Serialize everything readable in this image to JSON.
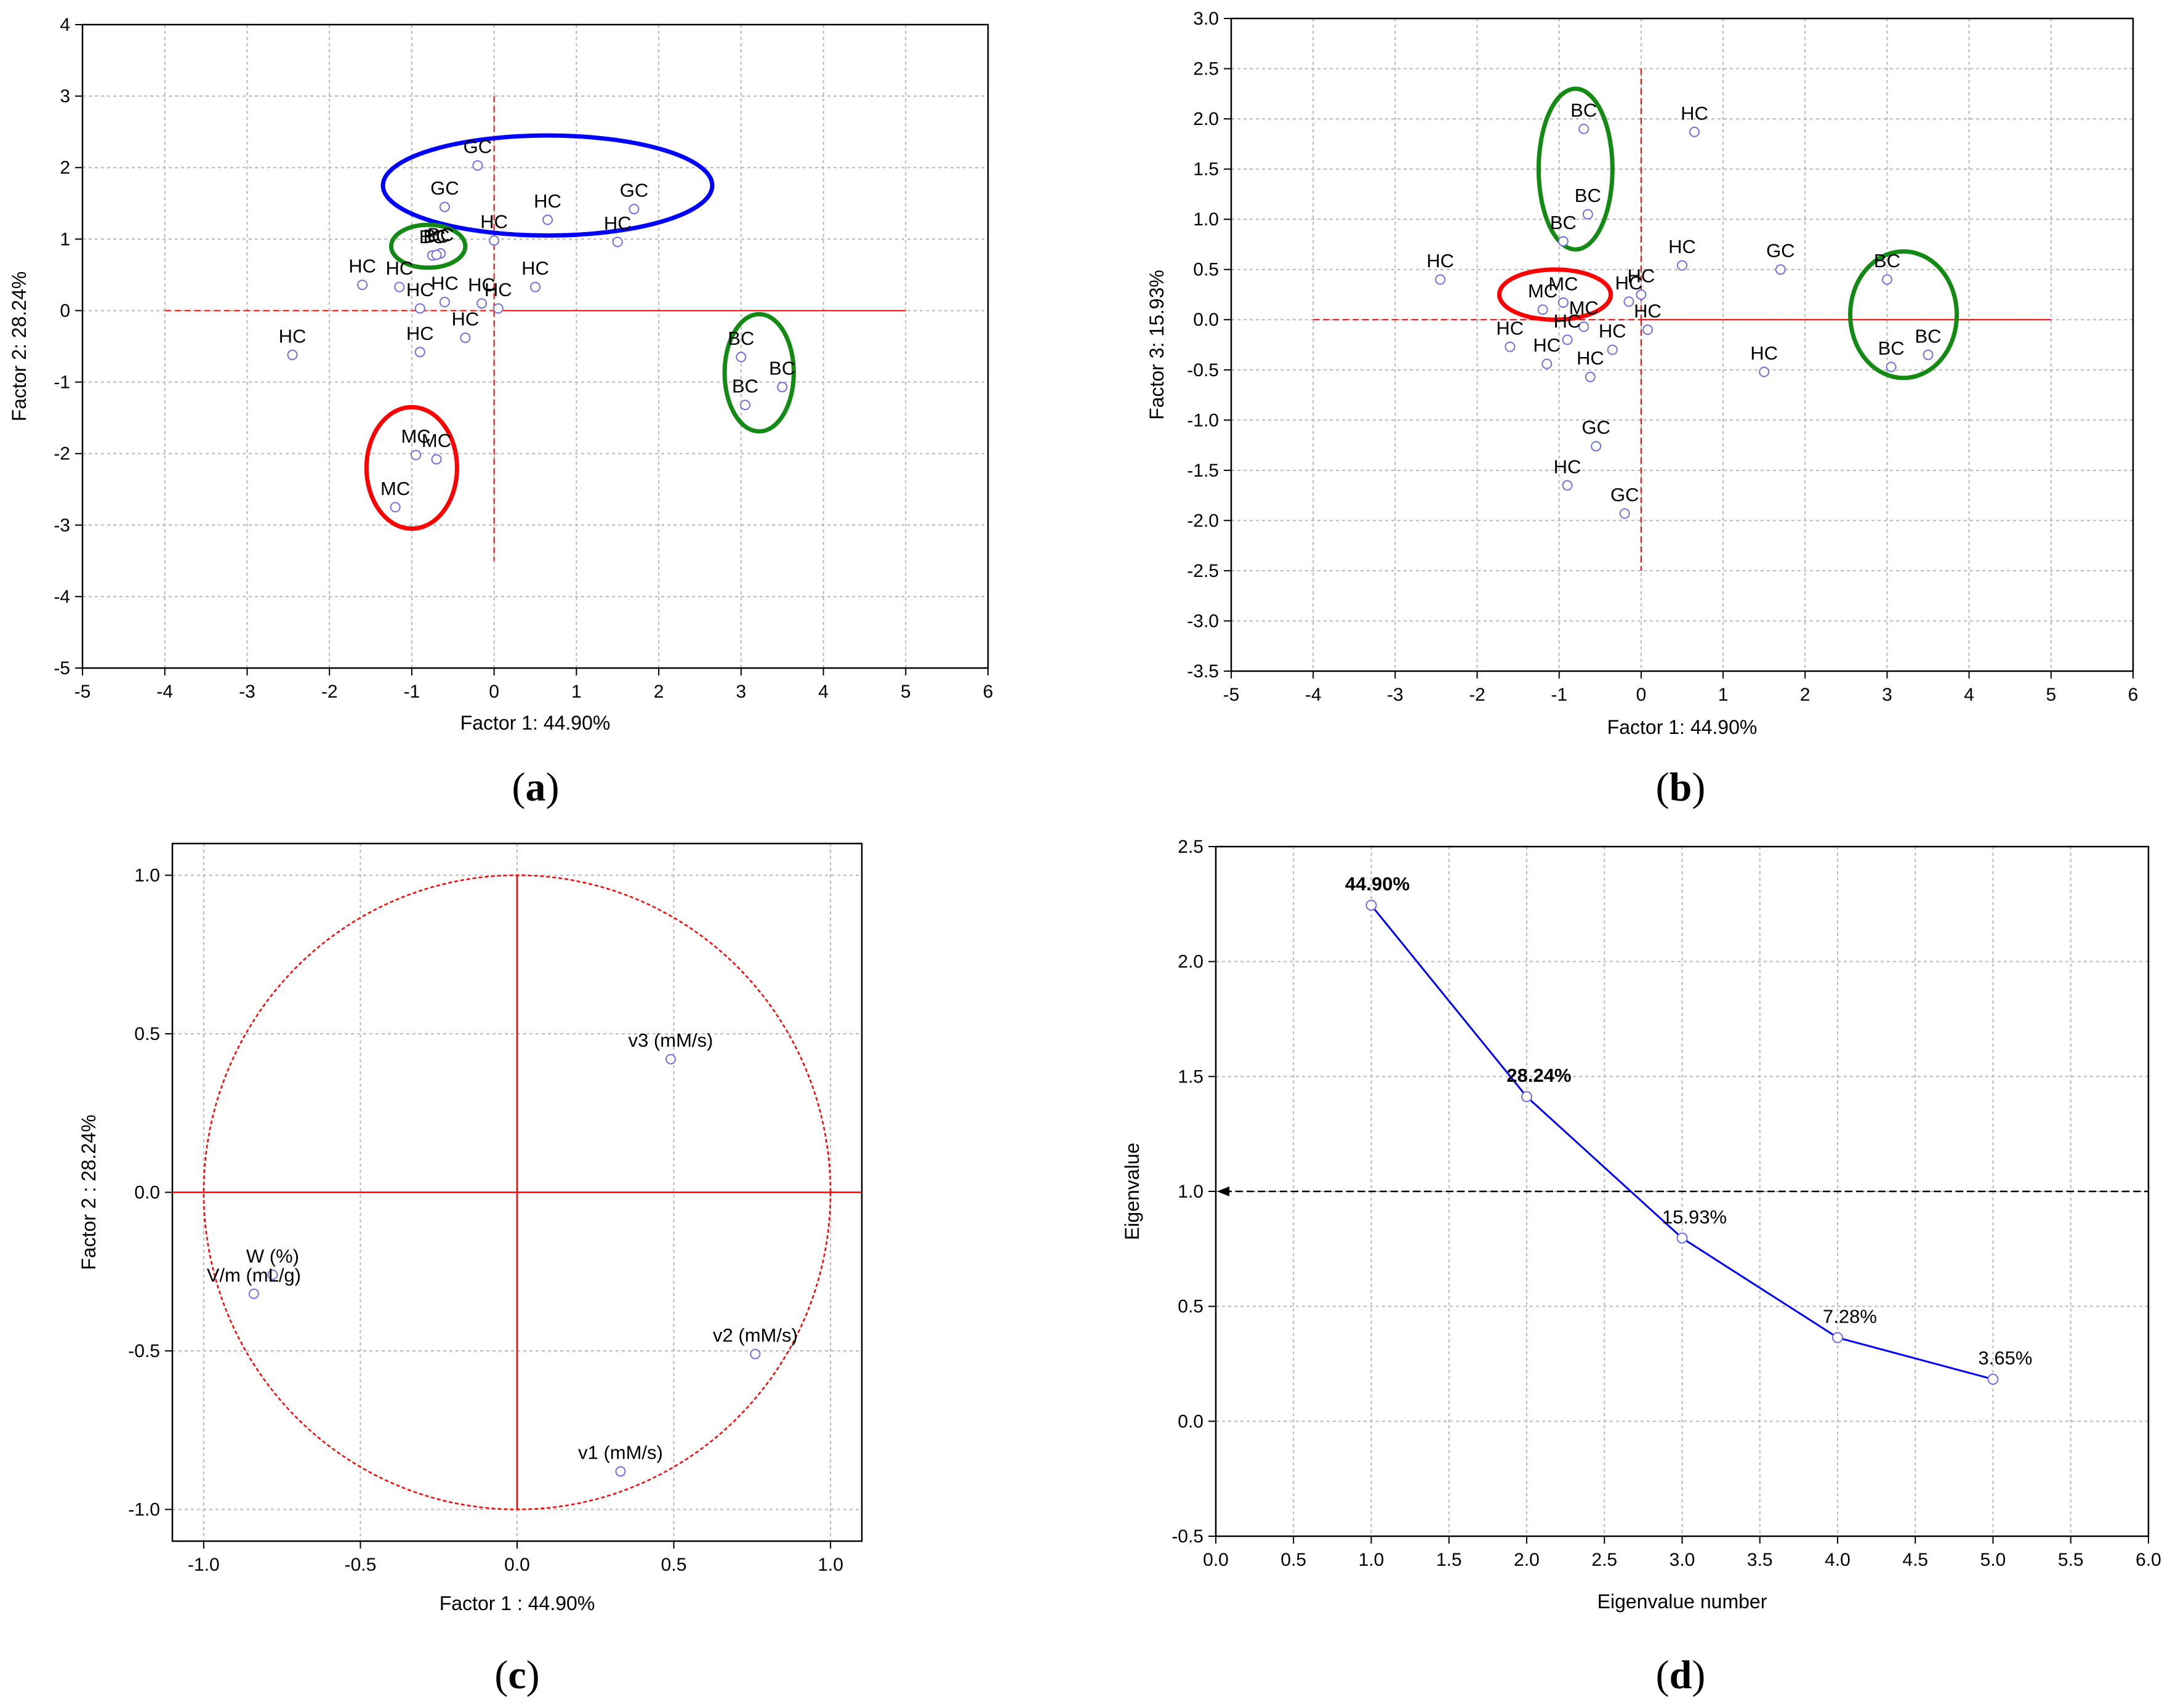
{
  "chart_data": [
    {
      "type": "scatter",
      "panel": "(a)",
      "panel_letter": "a",
      "xlabel": "Factor 1: 44.90%",
      "ylabel": "Factor 2: 28.24%",
      "xlim": [
        -5,
        6
      ],
      "ylim": [
        -5,
        4
      ],
      "xticks": [
        -5,
        -4,
        -3,
        -2,
        -1,
        0,
        1,
        2,
        3,
        4,
        5,
        6
      ],
      "yticks": [
        -5,
        -4,
        -3,
        -2,
        -1,
        0,
        1,
        2,
        3,
        4
      ],
      "grid": true,
      "points": [
        {
          "label": "GC",
          "x": -0.2,
          "y": 2.03
        },
        {
          "label": "GC",
          "x": -0.6,
          "y": 1.45
        },
        {
          "label": "HC",
          "x": 0.65,
          "y": 1.27
        },
        {
          "label": "GC",
          "x": 1.7,
          "y": 1.42
        },
        {
          "label": "HC",
          "x": 0.0,
          "y": 0.98
        },
        {
          "label": "HC",
          "x": 1.5,
          "y": 0.96
        },
        {
          "label": "BC",
          "x": -0.75,
          "y": 0.77
        },
        {
          "label": "BC",
          "x": -0.65,
          "y": 0.8
        },
        {
          "label": "BC",
          "x": -0.7,
          "y": 0.78
        },
        {
          "label": "HC",
          "x": -1.6,
          "y": 0.36
        },
        {
          "label": "HC",
          "x": -1.15,
          "y": 0.33
        },
        {
          "label": "HC",
          "x": -0.9,
          "y": 0.03
        },
        {
          "label": "HC",
          "x": -0.6,
          "y": 0.12
        },
        {
          "label": "HC",
          "x": -0.15,
          "y": 0.1
        },
        {
          "label": "HC",
          "x": 0.05,
          "y": 0.03
        },
        {
          "label": "HC",
          "x": 0.5,
          "y": 0.33
        },
        {
          "label": "HC",
          "x": -2.45,
          "y": -0.62
        },
        {
          "label": "HC",
          "x": -0.9,
          "y": -0.58
        },
        {
          "label": "HC",
          "x": -0.35,
          "y": -0.38
        },
        {
          "label": "MC",
          "x": -0.95,
          "y": -2.02
        },
        {
          "label": "MC",
          "x": -0.7,
          "y": -2.08
        },
        {
          "label": "MC",
          "x": -1.2,
          "y": -2.75
        },
        {
          "label": "BC",
          "x": 3.0,
          "y": -0.65
        },
        {
          "label": "BC",
          "x": 3.05,
          "y": -1.32
        },
        {
          "label": "BC",
          "x": 3.5,
          "y": -1.07
        }
      ],
      "ref_lines": {
        "x": 0,
        "y": 0
      },
      "groups": [
        {
          "color": "#0000ff",
          "cx": 0.65,
          "cy": 1.75,
          "rx": 2.0,
          "ry": 0.7
        },
        {
          "color": "#138a13",
          "cx": -0.8,
          "cy": 0.9,
          "rx": 0.45,
          "ry": 0.3
        },
        {
          "color": "#ff0000",
          "cx": -1.0,
          "cy": -2.2,
          "rx": 0.55,
          "ry": 0.85
        },
        {
          "color": "#138a13",
          "cx": 3.22,
          "cy": -0.87,
          "rx": 0.42,
          "ry": 0.82
        }
      ]
    },
    {
      "type": "scatter",
      "panel": "(b)",
      "panel_letter": "b",
      "xlabel": "Factor 1: 44.90%",
      "ylabel": "Factor 3: 15.93%",
      "xlim": [
        -5,
        6
      ],
      "ylim": [
        -3.5,
        3.0
      ],
      "xticks": [
        -5,
        -4,
        -3,
        -2,
        -1,
        0,
        1,
        2,
        3,
        4,
        5,
        6
      ],
      "yticks": [
        -3.5,
        -3.0,
        -2.5,
        -2.0,
        -1.5,
        -1.0,
        -0.5,
        0.0,
        0.5,
        1.0,
        1.5,
        2.0,
        2.5,
        3.0
      ],
      "grid": true,
      "points": [
        {
          "label": "BC",
          "x": -0.7,
          "y": 1.9
        },
        {
          "label": "HC",
          "x": 0.65,
          "y": 1.87
        },
        {
          "label": "BC",
          "x": -0.65,
          "y": 1.05
        },
        {
          "label": "BC",
          "x": -0.95,
          "y": 0.78
        },
        {
          "label": "HC",
          "x": -2.45,
          "y": 0.4
        },
        {
          "label": "HC",
          "x": 0.5,
          "y": 0.54
        },
        {
          "label": "GC",
          "x": 1.7,
          "y": 0.5
        },
        {
          "label": "BC",
          "x": 3.0,
          "y": 0.4
        },
        {
          "label": "MC",
          "x": -1.2,
          "y": 0.1
        },
        {
          "label": "MC",
          "x": -0.95,
          "y": 0.17
        },
        {
          "label": "MC",
          "x": -0.7,
          "y": -0.07
        },
        {
          "label": "HC",
          "x": -0.15,
          "y": 0.18
        },
        {
          "label": "HC",
          "x": 0.0,
          "y": 0.25
        },
        {
          "label": "HC",
          "x": 0.08,
          "y": -0.1
        },
        {
          "label": "HC",
          "x": -1.6,
          "y": -0.27
        },
        {
          "label": "HC",
          "x": -0.9,
          "y": -0.2
        },
        {
          "label": "HC",
          "x": -1.15,
          "y": -0.44
        },
        {
          "label": "HC",
          "x": -0.35,
          "y": -0.3
        },
        {
          "label": "HC",
          "x": -0.62,
          "y": -0.57
        },
        {
          "label": "HC",
          "x": 1.5,
          "y": -0.52
        },
        {
          "label": "BC",
          "x": 3.05,
          "y": -0.47
        },
        {
          "label": "BC",
          "x": 3.5,
          "y": -0.35
        },
        {
          "label": "GC",
          "x": -0.55,
          "y": -1.26
        },
        {
          "label": "HC",
          "x": -0.9,
          "y": -1.65
        },
        {
          "label": "GC",
          "x": -0.2,
          "y": -1.93
        }
      ],
      "ref_lines": {
        "x": 0,
        "y": 0
      },
      "groups": [
        {
          "color": "#138a13",
          "cx": -0.8,
          "cy": 1.5,
          "rx": 0.45,
          "ry": 0.8
        },
        {
          "color": "#ff0000",
          "cx": -1.05,
          "cy": 0.25,
          "rx": 0.68,
          "ry": 0.25
        },
        {
          "color": "#138a13",
          "cx": 3.2,
          "cy": 0.05,
          "rx": 0.65,
          "ry": 0.63
        }
      ]
    },
    {
      "type": "scatter",
      "panel": "(c)",
      "panel_letter": "c",
      "xlabel": "Factor 1 : 44.90%",
      "ylabel": "Factor 2 : 28.24%",
      "xlim": [
        -1.1,
        1.1
      ],
      "ylim": [
        -1.1,
        1.1
      ],
      "xticks": [
        -1.0,
        -0.5,
        0.0,
        0.5,
        1.0
      ],
      "yticks": [
        -1.0,
        -0.5,
        0.0,
        0.5,
        1.0
      ],
      "grid": true,
      "circle": {
        "radius": 1.0,
        "color": "#ff0000"
      },
      "points": [
        {
          "label": "v3 (mM/s)",
          "x": 0.49,
          "y": 0.42
        },
        {
          "label": "W (%)",
          "x": -0.78,
          "y": -0.26
        },
        {
          "label": "V/m (mL/g)",
          "x": -0.84,
          "y": -0.32
        },
        {
          "label": "v2 (mM/s)",
          "x": 0.76,
          "y": -0.51
        },
        {
          "label": "v1 (mM/s)",
          "x": 0.33,
          "y": -0.88
        }
      ],
      "ref_lines": {
        "x": 0,
        "y": 0
      }
    },
    {
      "type": "line",
      "panel": "(d)",
      "panel_letter": "d",
      "xlabel": "Eigenvalue number",
      "ylabel": "Eigenvalue",
      "xlim": [
        0.0,
        6.0
      ],
      "ylim": [
        -0.5,
        2.5
      ],
      "xticks": [
        0.0,
        0.5,
        1.0,
        1.5,
        2.0,
        2.5,
        3.0,
        3.5,
        4.0,
        4.5,
        5.0,
        5.5,
        6.0
      ],
      "yticks": [
        -0.5,
        0.0,
        0.5,
        1.0,
        1.5,
        2.0,
        2.5
      ],
      "grid": true,
      "series": [
        {
          "name": "Eigenvalue",
          "color": "#0000ff",
          "x": [
            1,
            2,
            3,
            4,
            5
          ],
          "values": [
            2.245,
            1.412,
            0.797,
            0.364,
            0.183
          ],
          "labels": [
            "44.90%",
            "28.24%",
            "15.93%",
            "7.28%",
            "3.65%"
          ],
          "label_colors": [
            "#33cc33",
            "#33cc33",
            "#000000",
            "#000000",
            "#000000"
          ]
        }
      ],
      "threshold": {
        "y": 1.0,
        "color": "#000000"
      }
    }
  ]
}
